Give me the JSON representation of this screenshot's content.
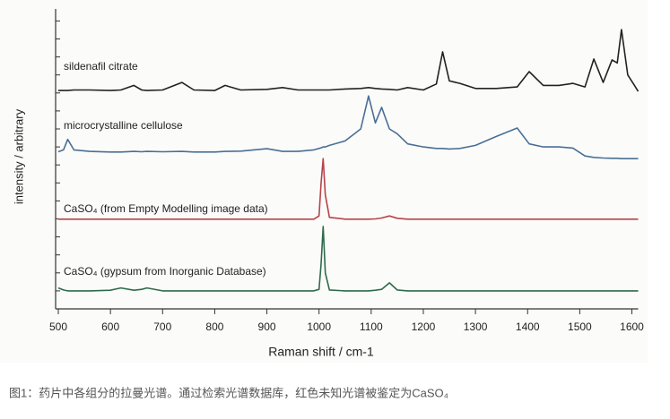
{
  "chart_data": {
    "type": "line",
    "xlabel": "Raman shift / cm-1",
    "ylabel": "intensity / arbitrary",
    "caption": "图1：药片中各组分的拉曼光谱。通过检索光谱数据库，红色未知光谱被鉴定为CaSO₄",
    "x": [
      500,
      510,
      518,
      530,
      560,
      600,
      620,
      645,
      660,
      670,
      700,
      737,
      760,
      800,
      820,
      850,
      900,
      930,
      960,
      990,
      1000,
      1004,
      1008,
      1012,
      1020,
      1050,
      1080,
      1095,
      1108,
      1120,
      1135,
      1150,
      1170,
      1200,
      1225,
      1237,
      1250,
      1270,
      1300,
      1340,
      1380,
      1403,
      1430,
      1460,
      1487,
      1510,
      1527,
      1545,
      1562,
      1572,
      1580,
      1592,
      1605,
      1612
    ],
    "xlim": [
      500,
      1612
    ],
    "xticks": [
      500,
      600,
      700,
      800,
      900,
      1000,
      1100,
      1200,
      1300,
      1400,
      1500,
      1600
    ],
    "ylim": [
      0,
      100
    ],
    "yticks": [
      6,
      12,
      18,
      24,
      30,
      36,
      42,
      48,
      54,
      60,
      66,
      72,
      78,
      84,
      90,
      96
    ],
    "series": [
      {
        "name": "sildenafil citrate",
        "color": "#222222",
        "values": [
          72.8,
          72.8,
          72.8,
          73,
          73,
          72.8,
          73,
          74.5,
          73,
          72.8,
          73,
          75.5,
          73,
          72.8,
          74.5,
          73,
          73.2,
          73.8,
          73,
          73,
          73,
          73,
          73,
          73,
          73,
          73.3,
          73.5,
          73.8,
          73.5,
          73.3,
          73.2,
          73,
          73.8,
          73,
          75,
          85.7,
          76,
          75.2,
          73.5,
          73.5,
          74,
          79.1,
          74.5,
          74.5,
          75.2,
          74,
          83.3,
          75.5,
          83,
          82,
          93.1,
          78,
          74.5,
          72.5
        ]
      },
      {
        "name": "microcrystalline cellulose",
        "color": "#4a6f94",
        "values": [
          52.4,
          53,
          56.5,
          53,
          52.5,
          52.3,
          52.3,
          52.5,
          52.4,
          52.5,
          52.4,
          52.5,
          52.3,
          52.3,
          52.5,
          52.6,
          53.4,
          52.5,
          52.5,
          53,
          53.5,
          53.7,
          54,
          54,
          54.5,
          56,
          60,
          71,
          62,
          67.2,
          60,
          58.4,
          55,
          54,
          53.5,
          53.5,
          53.3,
          53.5,
          54.5,
          57.5,
          60.3,
          55,
          54,
          54,
          53.6,
          51,
          50.5,
          50.3,
          50.2,
          50.2,
          50.1,
          50.1,
          50.1,
          50.1
        ]
      },
      {
        "name": "CaSO₄ (from Empty Modelling image data)",
        "color": "#b5444a",
        "values": [
          29.9,
          29.9,
          29.9,
          29.9,
          29.9,
          29.9,
          29.9,
          29.9,
          29.9,
          29.9,
          29.9,
          29.9,
          29.9,
          29.9,
          29.9,
          29.9,
          29.9,
          29.9,
          29.9,
          29.9,
          31,
          42,
          50.1,
          38,
          30.5,
          29.9,
          29.9,
          29.9,
          30,
          30.3,
          31,
          30.2,
          29.9,
          29.9,
          29.9,
          29.9,
          29.9,
          29.9,
          29.9,
          29.9,
          29.9,
          29.9,
          29.9,
          29.9,
          29.9,
          29.9,
          29.9,
          29.9,
          29.9,
          29.9,
          29.9,
          29.9,
          29.9,
          29.9
        ]
      },
      {
        "name": "CaSO₄ (gypsum from Inorganic Database)",
        "color": "#2e6b4a",
        "values": [
          7,
          6.3,
          6,
          6,
          6,
          6.2,
          7,
          6.2,
          6.5,
          7,
          6,
          6,
          6,
          6,
          6,
          6,
          6,
          6,
          6,
          6,
          6.5,
          15,
          27.5,
          12,
          6.3,
          6,
          6,
          6,
          6.2,
          6.5,
          8.7,
          6.3,
          6,
          6,
          6,
          6,
          6,
          6,
          6,
          6,
          6,
          6,
          6,
          6,
          6,
          6,
          6,
          6,
          6,
          6,
          6,
          6,
          6,
          6
        ]
      }
    ]
  }
}
